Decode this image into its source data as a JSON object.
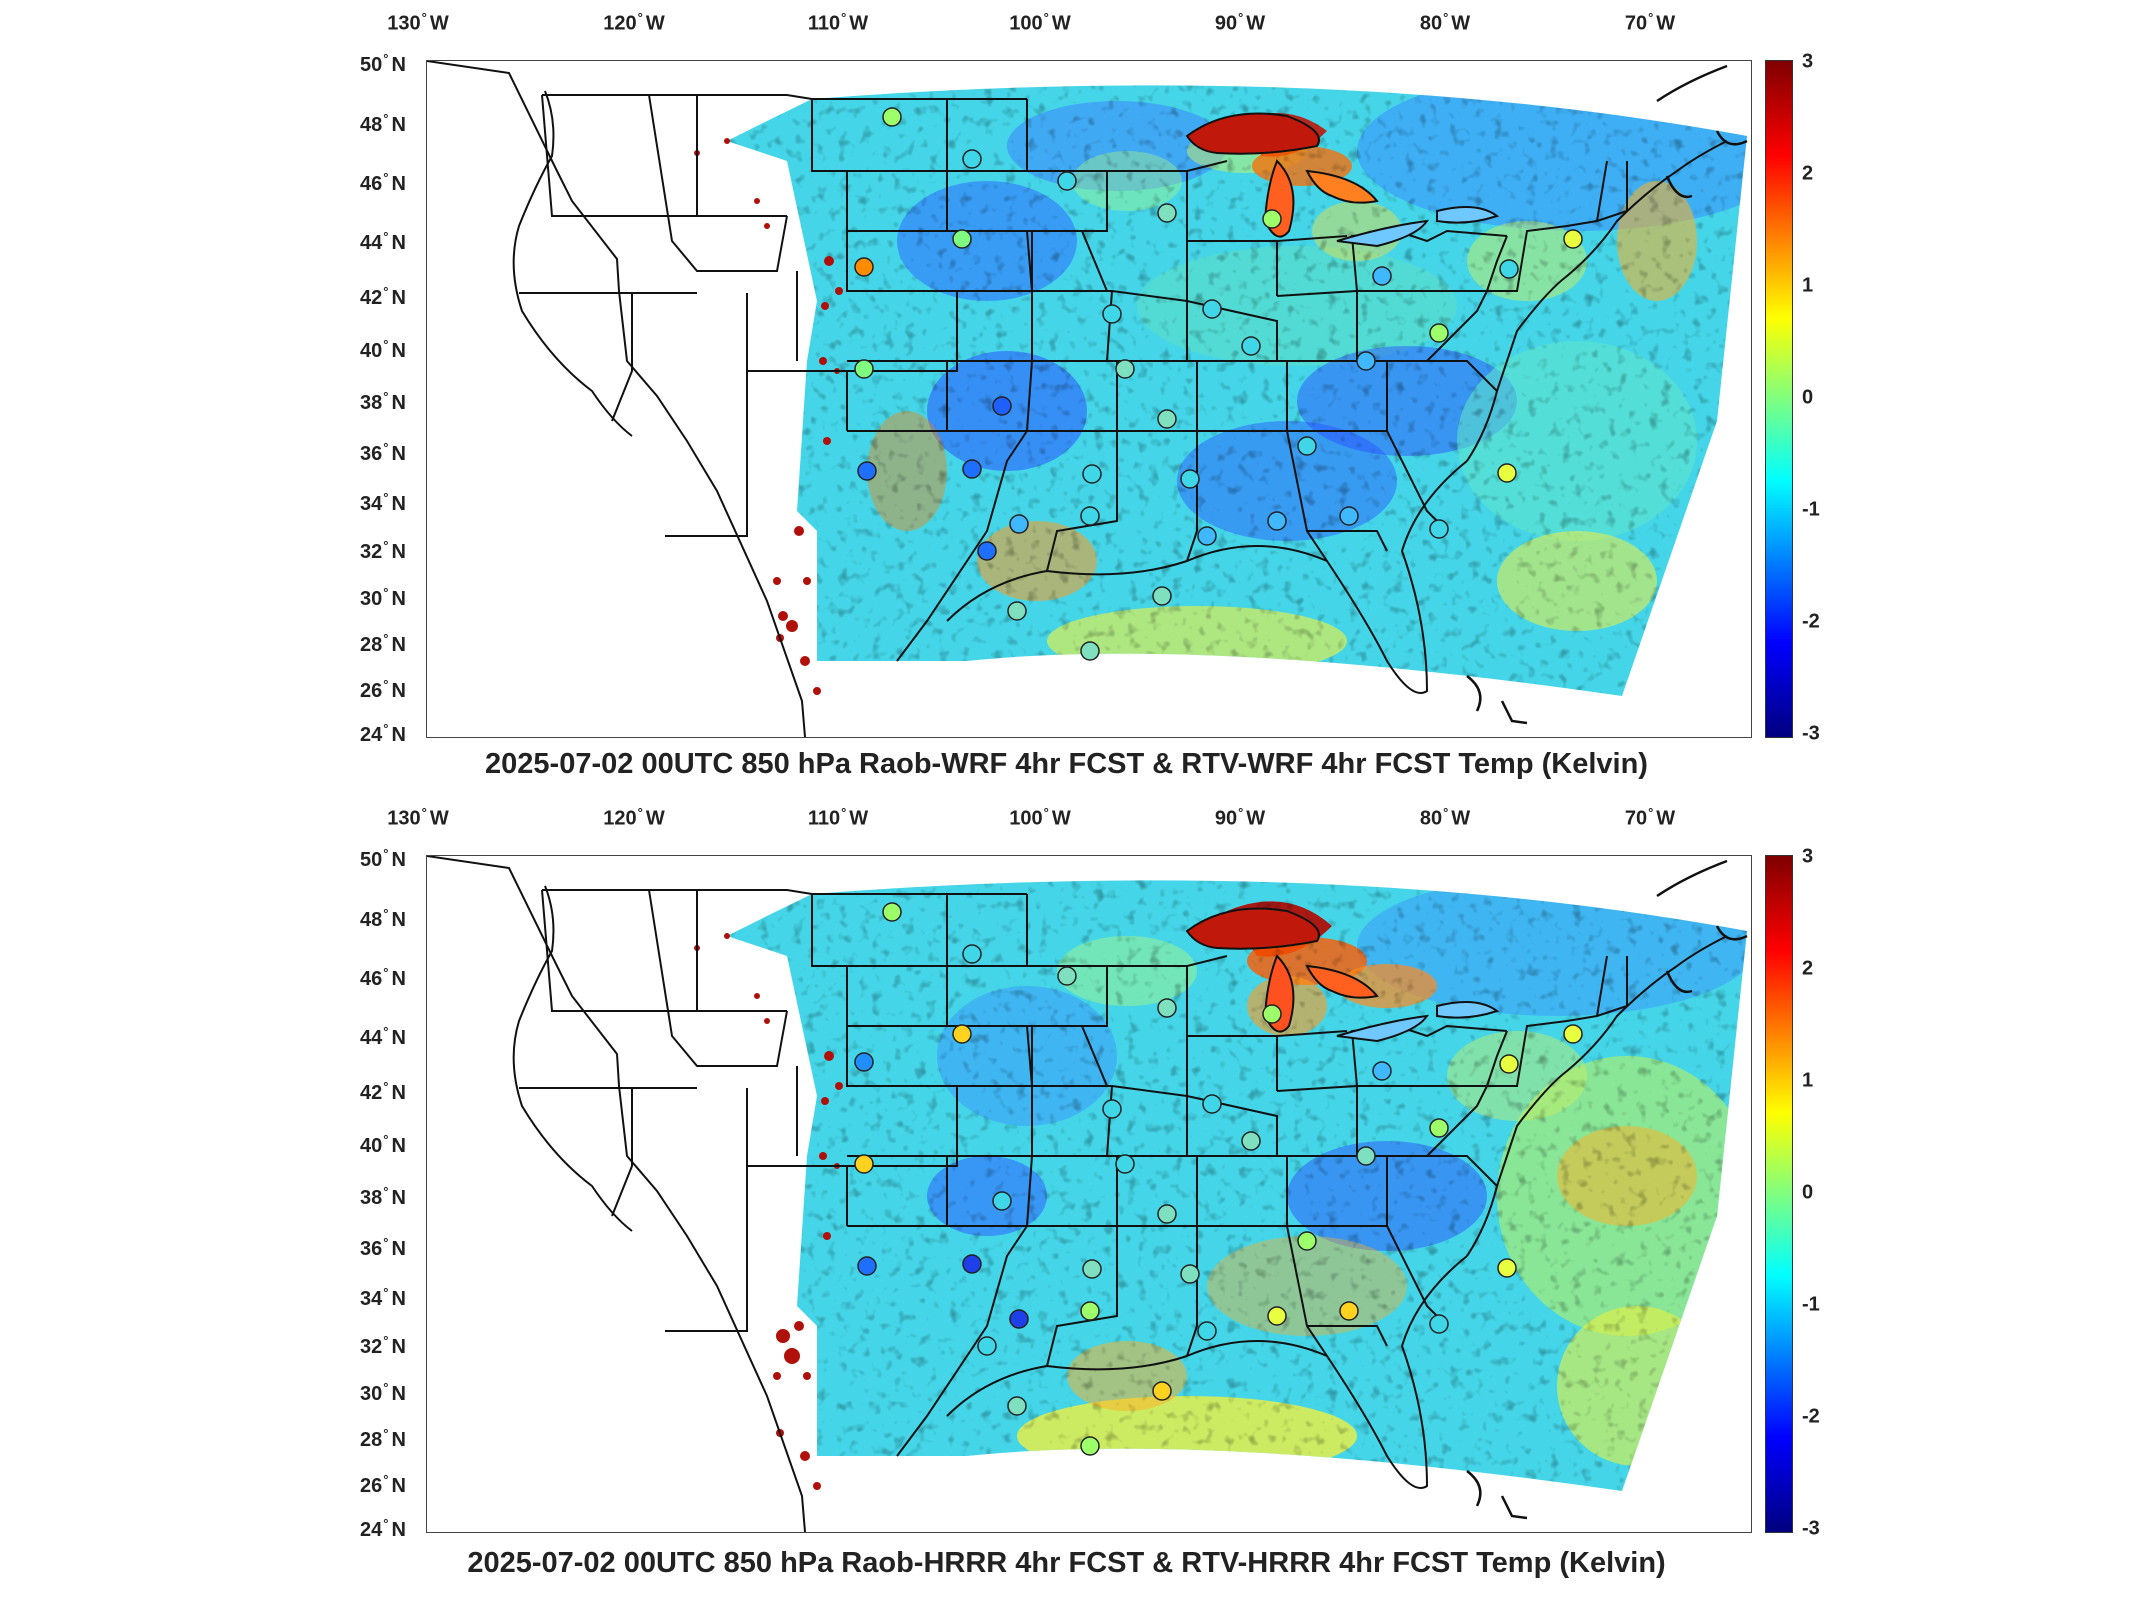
{
  "panels": [
    {
      "title": "2025-07-02 00UTC 850 hPa Raob-WRF 4hr FCST & RTV-WRF 4hr FCST Temp (Kelvin)",
      "colorbar_ticks": [
        "3",
        "2",
        "1",
        "0",
        "-1",
        "-2",
        "-3"
      ]
    },
    {
      "title": "2025-07-02 00UTC 850 hPa Raob-HRRR 4hr FCST & RTV-HRRR 4hr FCST Temp (Kelvin)",
      "colorbar_ticks": [
        "3",
        "2",
        "1",
        "0",
        "-1",
        "-2",
        "-3"
      ]
    }
  ],
  "lon_labels": [
    "130",
    "120",
    "110",
    "100",
    "90",
    "80",
    "70"
  ],
  "lon_suffix": "W",
  "lat_labels": [
    "50",
    "48",
    "46",
    "44",
    "42",
    "40",
    "38",
    "36",
    "34",
    "32",
    "30",
    "28",
    "26",
    "24"
  ],
  "lat_suffix": "N",
  "degree_symbol": "°",
  "colormap": [
    "#7f0000",
    "#ff0000",
    "#ff7f00",
    "#ffff00",
    "#7fff7f",
    "#00ffff",
    "#007fff",
    "#0000ff",
    "#00007f"
  ],
  "colorbar_range": [
    -3,
    3
  ]
}
